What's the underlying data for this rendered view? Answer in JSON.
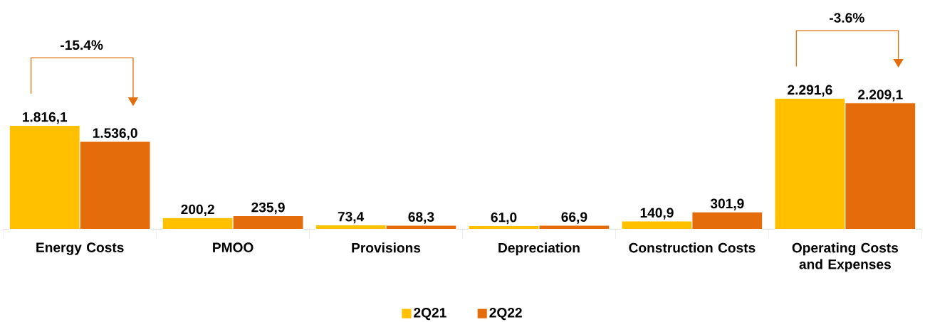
{
  "chart_data": {
    "type": "bar",
    "categories": [
      "Energy Costs",
      "PMOO",
      "Provisions",
      "Depreciation",
      "Construction Costs",
      "Operating Costs and Expenses"
    ],
    "series": [
      {
        "name": "2Q21",
        "color": "#ffc000",
        "values": [
          1816.1,
          200.2,
          73.4,
          61.0,
          140.9,
          2291.6
        ],
        "value_labels": [
          "1.816,1",
          "200,2",
          "73,4",
          "61,0",
          "140,9",
          "2.291,6"
        ]
      },
      {
        "name": "2Q22",
        "color": "#e46c0a",
        "values": [
          1536.0,
          235.9,
          68.3,
          66.9,
          301.9,
          2209.1
        ],
        "value_labels": [
          "1.536,0",
          "235,9",
          "68,3",
          "66,9",
          "301,9",
          "2.209,1"
        ]
      }
    ],
    "annotations": [
      "-15.4%",
      "-3.6%"
    ],
    "legend": "bottom",
    "tick_labels": "x",
    "grid": false
  }
}
